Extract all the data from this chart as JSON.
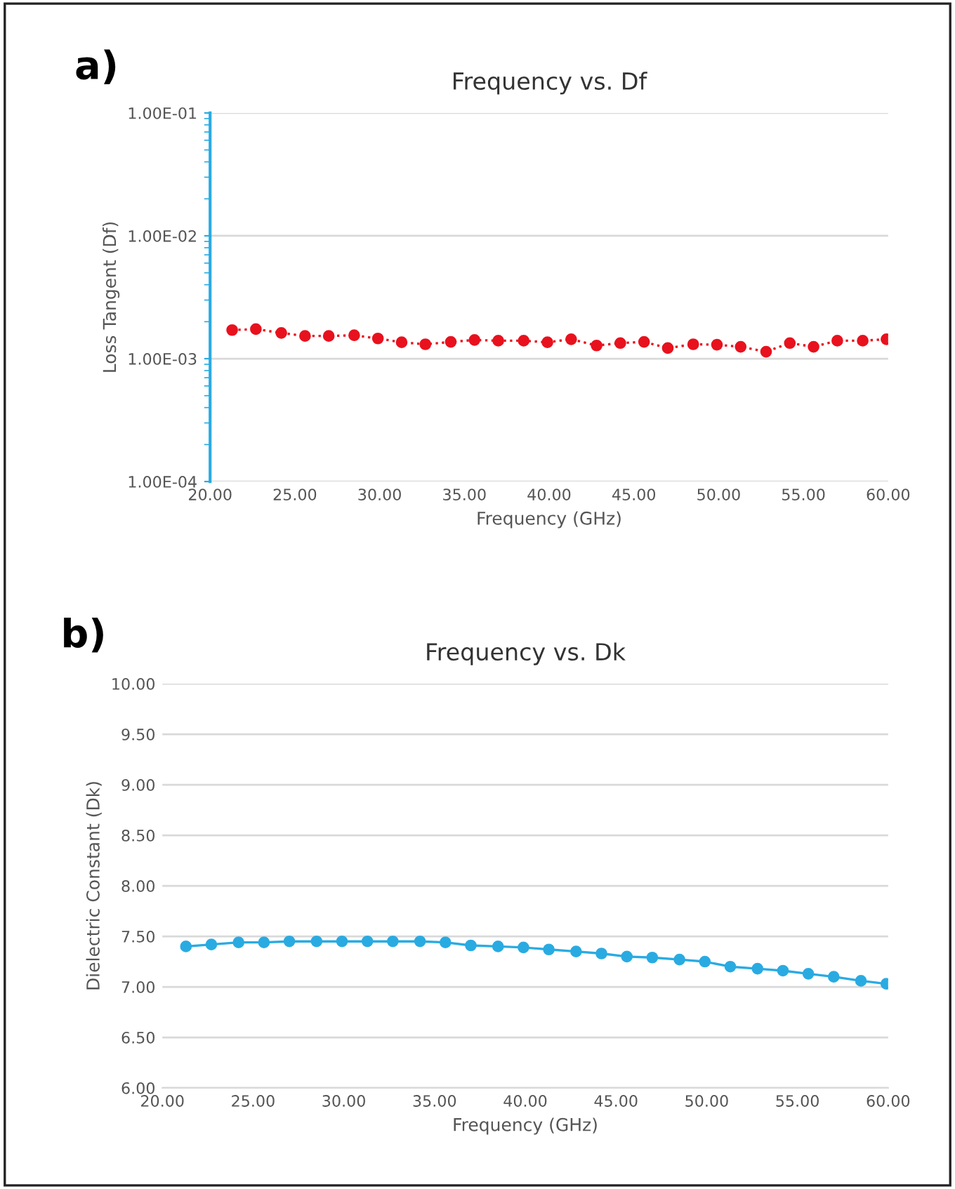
{
  "chart_data": [
    {
      "type": "line",
      "title": "Frequency vs. Df",
      "xlabel": "Frequency (GHz)",
      "ylabel": "Loss Tangent (Df)",
      "annotations": [
        "a)"
      ],
      "log": "y",
      "grid": "y",
      "marker": "circle",
      "line_style": "dotted",
      "xlim": [
        20,
        60
      ],
      "xticks": [
        {
          "value": 20,
          "label": "20.00"
        },
        {
          "value": 25,
          "label": "25.00"
        },
        {
          "value": 30,
          "label": "30.00"
        },
        {
          "value": 35,
          "label": "35.00"
        },
        {
          "value": 40,
          "label": "40.00"
        },
        {
          "value": 45,
          "label": "45.00"
        },
        {
          "value": 50,
          "label": "50.00"
        },
        {
          "value": 55,
          "label": "55.00"
        },
        {
          "value": 60,
          "label": "60.00"
        }
      ],
      "ylim": [
        0.0001,
        0.1
      ],
      "yticks": [
        {
          "value": 0.0001,
          "label": "1.00E-04"
        },
        {
          "value": 0.001,
          "label": "1.00E-03"
        },
        {
          "value": 0.01,
          "label": "1.00E-02"
        },
        {
          "value": 0.1,
          "label": "1.00E-01"
        }
      ],
      "x": [
        21.3,
        22.7,
        24.2,
        25.6,
        27.0,
        28.5,
        29.9,
        31.3,
        32.7,
        34.2,
        35.6,
        37.0,
        38.5,
        39.9,
        41.3,
        42.8,
        44.2,
        45.6,
        47.0,
        48.5,
        49.9,
        51.3,
        52.8,
        54.2,
        55.6,
        57.0,
        58.5,
        59.9
      ],
      "series": [
        {
          "color": "#e8121e",
          "values": [
            0.00171,
            0.00174,
            0.00162,
            0.00153,
            0.00153,
            0.00155,
            0.00146,
            0.00136,
            0.00131,
            0.00137,
            0.00142,
            0.0014,
            0.0014,
            0.00136,
            0.00144,
            0.00128,
            0.00134,
            0.00137,
            0.00122,
            0.00131,
            0.0013,
            0.00125,
            0.00114,
            0.00134,
            0.00125,
            0.0014,
            0.0014,
            0.00144
          ]
        }
      ]
    },
    {
      "type": "line",
      "title": "Frequency vs. Dk",
      "xlabel": "Frequency (GHz)",
      "ylabel": "Dielectric Constant (Dk)",
      "annotations": [
        "b)"
      ],
      "grid": "y",
      "marker": "circle",
      "line_style": "solid",
      "xlim": [
        20,
        60
      ],
      "xticks": [
        {
          "value": 20,
          "label": "20.00"
        },
        {
          "value": 25,
          "label": "25.00"
        },
        {
          "value": 30,
          "label": "30.00"
        },
        {
          "value": 35,
          "label": "35.00"
        },
        {
          "value": 40,
          "label": "40.00"
        },
        {
          "value": 45,
          "label": "45.00"
        },
        {
          "value": 50,
          "label": "50.00"
        },
        {
          "value": 55,
          "label": "55.00"
        },
        {
          "value": 60,
          "label": "60.00"
        }
      ],
      "ylim": [
        6,
        10
      ],
      "yticks": [
        {
          "value": 6,
          "label": "6.00"
        },
        {
          "value": 6.5,
          "label": "6.50"
        },
        {
          "value": 7,
          "label": "7.00"
        },
        {
          "value": 7.5,
          "label": "7.50"
        },
        {
          "value": 8,
          "label": "8.00"
        },
        {
          "value": 8.5,
          "label": "8.50"
        },
        {
          "value": 9,
          "label": "9.00"
        },
        {
          "value": 9.5,
          "label": "9.50"
        },
        {
          "value": 10,
          "label": "10.00"
        }
      ],
      "x": [
        21.3,
        22.7,
        24.2,
        25.6,
        27.0,
        28.5,
        29.9,
        31.3,
        32.7,
        34.2,
        35.6,
        37.0,
        38.5,
        39.9,
        41.3,
        42.8,
        44.2,
        45.6,
        47.0,
        48.5,
        49.9,
        51.3,
        52.8,
        54.2,
        55.6,
        57.0,
        58.5,
        59.9
      ],
      "series": [
        {
          "color": "#29abe2",
          "values": [
            7.4,
            7.42,
            7.44,
            7.44,
            7.45,
            7.45,
            7.45,
            7.45,
            7.45,
            7.45,
            7.44,
            7.41,
            7.4,
            7.39,
            7.37,
            7.35,
            7.33,
            7.3,
            7.29,
            7.27,
            7.25,
            7.2,
            7.18,
            7.16,
            7.13,
            7.1,
            7.06,
            7.03
          ]
        }
      ]
    }
  ]
}
